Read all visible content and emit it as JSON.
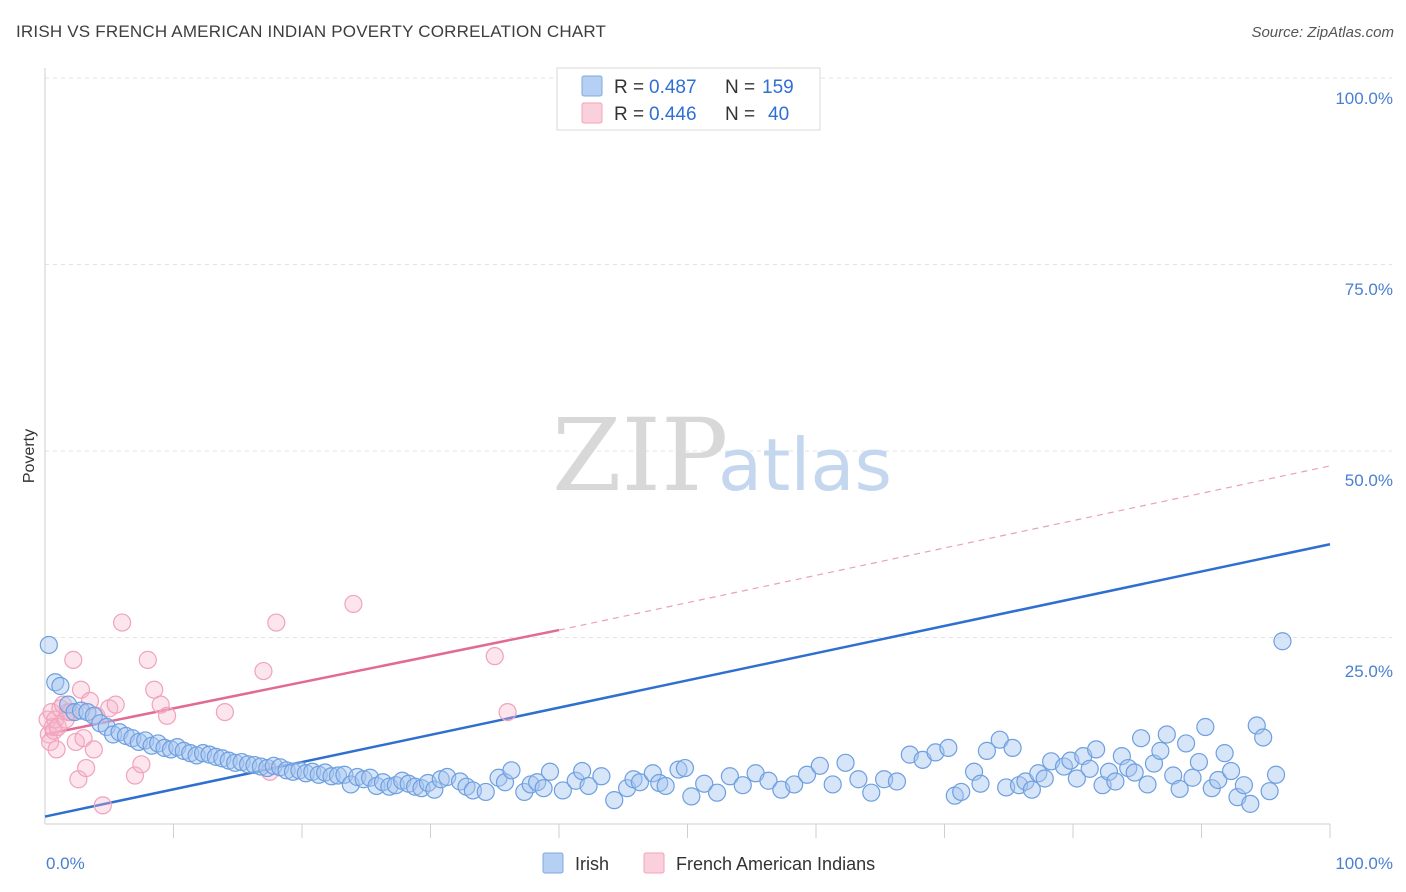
{
  "header": {
    "title": "IRISH VS FRENCH AMERICAN INDIAN POVERTY CORRELATION CHART",
    "source": "Source: ZipAtlas.com"
  },
  "watermark": {
    "zip": "ZIP",
    "atlas": "atlas"
  },
  "legend": {
    "items": [
      {
        "r_label": "R =",
        "r_value": "0.487",
        "n_label": "N =",
        "n_value": "159",
        "color": "#a9c8f0"
      },
      {
        "r_label": "R =",
        "r_value": "0.446",
        "n_label": "N =",
        "n_value": "40",
        "color": "#f7bfd0"
      }
    ]
  },
  "bottom_legend": {
    "irish": "Irish",
    "french": "French American Indians"
  },
  "chart_data": {
    "type": "scatter",
    "title": "IRISH VS FRENCH AMERICAN INDIAN POVERTY CORRELATION CHART",
    "xlabel": "",
    "ylabel": "Poverty",
    "xlim": [
      0,
      100
    ],
    "ylim": [
      0,
      100
    ],
    "x_tick_labels": [
      "0.0%",
      "100.0%"
    ],
    "y_tick_labels": [
      "100.0%",
      "75.0%",
      "50.0%",
      "25.0%"
    ],
    "y_ticks": [
      100,
      75,
      50,
      25
    ],
    "series": [
      {
        "name": "Irish",
        "color": "#6a9fe0",
        "trend": {
          "x0": 0,
          "y0": 1,
          "x1": 100,
          "y1": 37.5
        },
        "points": [
          [
            0.3,
            24
          ],
          [
            0.8,
            19
          ],
          [
            1.2,
            18.5
          ],
          [
            1.8,
            16
          ],
          [
            2.3,
            15
          ],
          [
            2.8,
            15.2
          ],
          [
            3.3,
            15
          ],
          [
            3.8,
            14.5
          ],
          [
            4.3,
            13.5
          ],
          [
            4.8,
            13
          ],
          [
            5.3,
            12
          ],
          [
            5.8,
            12.3
          ],
          [
            6.3,
            11.8
          ],
          [
            6.8,
            11.5
          ],
          [
            7.3,
            11
          ],
          [
            7.8,
            11.2
          ],
          [
            8.3,
            10.5
          ],
          [
            8.8,
            10.8
          ],
          [
            9.3,
            10.2
          ],
          [
            9.8,
            10
          ],
          [
            10.3,
            10.3
          ],
          [
            10.8,
            9.8
          ],
          [
            11.3,
            9.5
          ],
          [
            11.8,
            9.2
          ],
          [
            12.3,
            9.5
          ],
          [
            12.8,
            9.3
          ],
          [
            13.3,
            9
          ],
          [
            13.8,
            8.8
          ],
          [
            14.3,
            8.5
          ],
          [
            14.8,
            8.2
          ],
          [
            15.3,
            8.3
          ],
          [
            15.8,
            8
          ],
          [
            16.3,
            7.9
          ],
          [
            16.8,
            7.7
          ],
          [
            17.3,
            7.5
          ],
          [
            17.8,
            7.8
          ],
          [
            18.3,
            7.6
          ],
          [
            18.8,
            7.2
          ],
          [
            19.3,
            7
          ],
          [
            19.8,
            7.2
          ],
          [
            20.3,
            6.8
          ],
          [
            20.8,
            7
          ],
          [
            21.3,
            6.6
          ],
          [
            21.8,
            6.9
          ],
          [
            22.3,
            6.4
          ],
          [
            22.8,
            6.5
          ],
          [
            23.3,
            6.6
          ],
          [
            23.8,
            5.3
          ],
          [
            24.3,
            6.3
          ],
          [
            24.8,
            6
          ],
          [
            25.3,
            6.2
          ],
          [
            25.8,
            5.1
          ],
          [
            26.3,
            5.6
          ],
          [
            26.8,
            5
          ],
          [
            27.3,
            5.2
          ],
          [
            27.8,
            5.8
          ],
          [
            28.3,
            5.4
          ],
          [
            28.8,
            5
          ],
          [
            29.3,
            4.8
          ],
          [
            29.8,
            5.5
          ],
          [
            30.3,
            4.6
          ],
          [
            30.8,
            6
          ],
          [
            31.3,
            6.3
          ],
          [
            32.3,
            5.7
          ],
          [
            32.8,
            5
          ],
          [
            33.3,
            4.5
          ],
          [
            34.3,
            4.3
          ],
          [
            35.3,
            6.2
          ],
          [
            35.8,
            5.6
          ],
          [
            36.3,
            7.2
          ],
          [
            37.3,
            4.3
          ],
          [
            37.8,
            5.3
          ],
          [
            38.3,
            5.6
          ],
          [
            38.8,
            4.8
          ],
          [
            39.3,
            7
          ],
          [
            40.3,
            4.5
          ],
          [
            41.3,
            5.8
          ],
          [
            41.8,
            7.1
          ],
          [
            42.3,
            5.1
          ],
          [
            43.3,
            6.4
          ],
          [
            44.3,
            3.2
          ],
          [
            45.3,
            4.8
          ],
          [
            45.8,
            6
          ],
          [
            46.3,
            5.6
          ],
          [
            47.3,
            6.8
          ],
          [
            47.8,
            5.5
          ],
          [
            48.3,
            5.1
          ],
          [
            49.3,
            7.3
          ],
          [
            49.8,
            7.5
          ],
          [
            50.3,
            3.7
          ],
          [
            51.3,
            5.4
          ],
          [
            52.3,
            4.2
          ],
          [
            53.3,
            6.4
          ],
          [
            54.3,
            5.2
          ],
          [
            55.3,
            6.8
          ],
          [
            56.3,
            5.8
          ],
          [
            57.3,
            4.6
          ],
          [
            58.3,
            5.3
          ],
          [
            59.3,
            6.6
          ],
          [
            60.3,
            7.8
          ],
          [
            61.3,
            5.3
          ],
          [
            62.3,
            8.2
          ],
          [
            63.3,
            6
          ],
          [
            64.3,
            4.2
          ],
          [
            65.3,
            6
          ],
          [
            66.3,
            5.7
          ],
          [
            67.3,
            9.3
          ],
          [
            68.3,
            8.6
          ],
          [
            69.3,
            9.6
          ],
          [
            70.3,
            10.2
          ],
          [
            70.8,
            3.8
          ],
          [
            71.3,
            4.3
          ],
          [
            72.3,
            7
          ],
          [
            72.8,
            5.4
          ],
          [
            73.3,
            9.8
          ],
          [
            74.3,
            11.3
          ],
          [
            74.8,
            4.9
          ],
          [
            75.3,
            10.2
          ],
          [
            75.8,
            5.2
          ],
          [
            76.3,
            5.7
          ],
          [
            76.8,
            4.6
          ],
          [
            77.3,
            6.8
          ],
          [
            77.8,
            6.1
          ],
          [
            78.3,
            8.4
          ],
          [
            79.3,
            7.7
          ],
          [
            79.8,
            8.5
          ],
          [
            80.3,
            6.1
          ],
          [
            80.8,
            9.1
          ],
          [
            81.3,
            7.4
          ],
          [
            81.8,
            10
          ],
          [
            82.3,
            5.2
          ],
          [
            82.8,
            7
          ],
          [
            83.3,
            5.7
          ],
          [
            83.8,
            9.1
          ],
          [
            84.3,
            7.5
          ],
          [
            84.8,
            6.9
          ],
          [
            85.3,
            11.5
          ],
          [
            85.8,
            5.3
          ],
          [
            86.3,
            8.1
          ],
          [
            86.8,
            9.8
          ],
          [
            87.3,
            12
          ],
          [
            87.8,
            6.5
          ],
          [
            88.3,
            4.7
          ],
          [
            88.8,
            10.8
          ],
          [
            89.3,
            6.2
          ],
          [
            89.8,
            8.3
          ],
          [
            90.3,
            13
          ],
          [
            90.8,
            4.8
          ],
          [
            91.3,
            5.9
          ],
          [
            91.8,
            9.5
          ],
          [
            92.3,
            7.1
          ],
          [
            92.8,
            3.6
          ],
          [
            93.3,
            5.2
          ],
          [
            93.8,
            2.7
          ],
          [
            94.3,
            13.2
          ],
          [
            94.8,
            11.6
          ],
          [
            95.3,
            4.4
          ],
          [
            95.8,
            6.6
          ],
          [
            96.3,
            24.5
          ]
        ]
      },
      {
        "name": "French American Indians",
        "color": "#f29ab6",
        "trend": {
          "x0": 0,
          "y0": 12,
          "x1": 40,
          "y1": 26
        },
        "trend_dashed_to": {
          "x": 100,
          "y": 48
        },
        "points": [
          [
            0.2,
            14
          ],
          [
            0.3,
            12
          ],
          [
            0.4,
            11
          ],
          [
            0.5,
            15
          ],
          [
            0.6,
            13
          ],
          [
            0.7,
            12.5
          ],
          [
            0.8,
            14
          ],
          [
            0.9,
            10
          ],
          [
            1,
            13
          ],
          [
            1.2,
            15.5
          ],
          [
            1.4,
            16
          ],
          [
            1.6,
            14
          ],
          [
            1.8,
            15
          ],
          [
            2,
            15
          ],
          [
            2.2,
            22
          ],
          [
            2.4,
            11
          ],
          [
            2.6,
            6
          ],
          [
            2.8,
            18
          ],
          [
            3,
            11.5
          ],
          [
            3.2,
            7.5
          ],
          [
            3.5,
            16.5
          ],
          [
            3.8,
            10
          ],
          [
            4,
            14.5
          ],
          [
            4.5,
            2.5
          ],
          [
            5,
            15.5
          ],
          [
            5.5,
            16
          ],
          [
            6,
            27
          ],
          [
            7,
            6.5
          ],
          [
            7.5,
            8
          ],
          [
            8,
            22
          ],
          [
            8.5,
            18
          ],
          [
            9,
            16
          ],
          [
            9.5,
            14.5
          ],
          [
            14,
            15
          ],
          [
            17,
            20.5
          ],
          [
            17.5,
            7
          ],
          [
            18,
            27
          ],
          [
            24,
            29.5
          ],
          [
            35,
            22.5
          ],
          [
            36,
            15
          ]
        ]
      }
    ]
  }
}
